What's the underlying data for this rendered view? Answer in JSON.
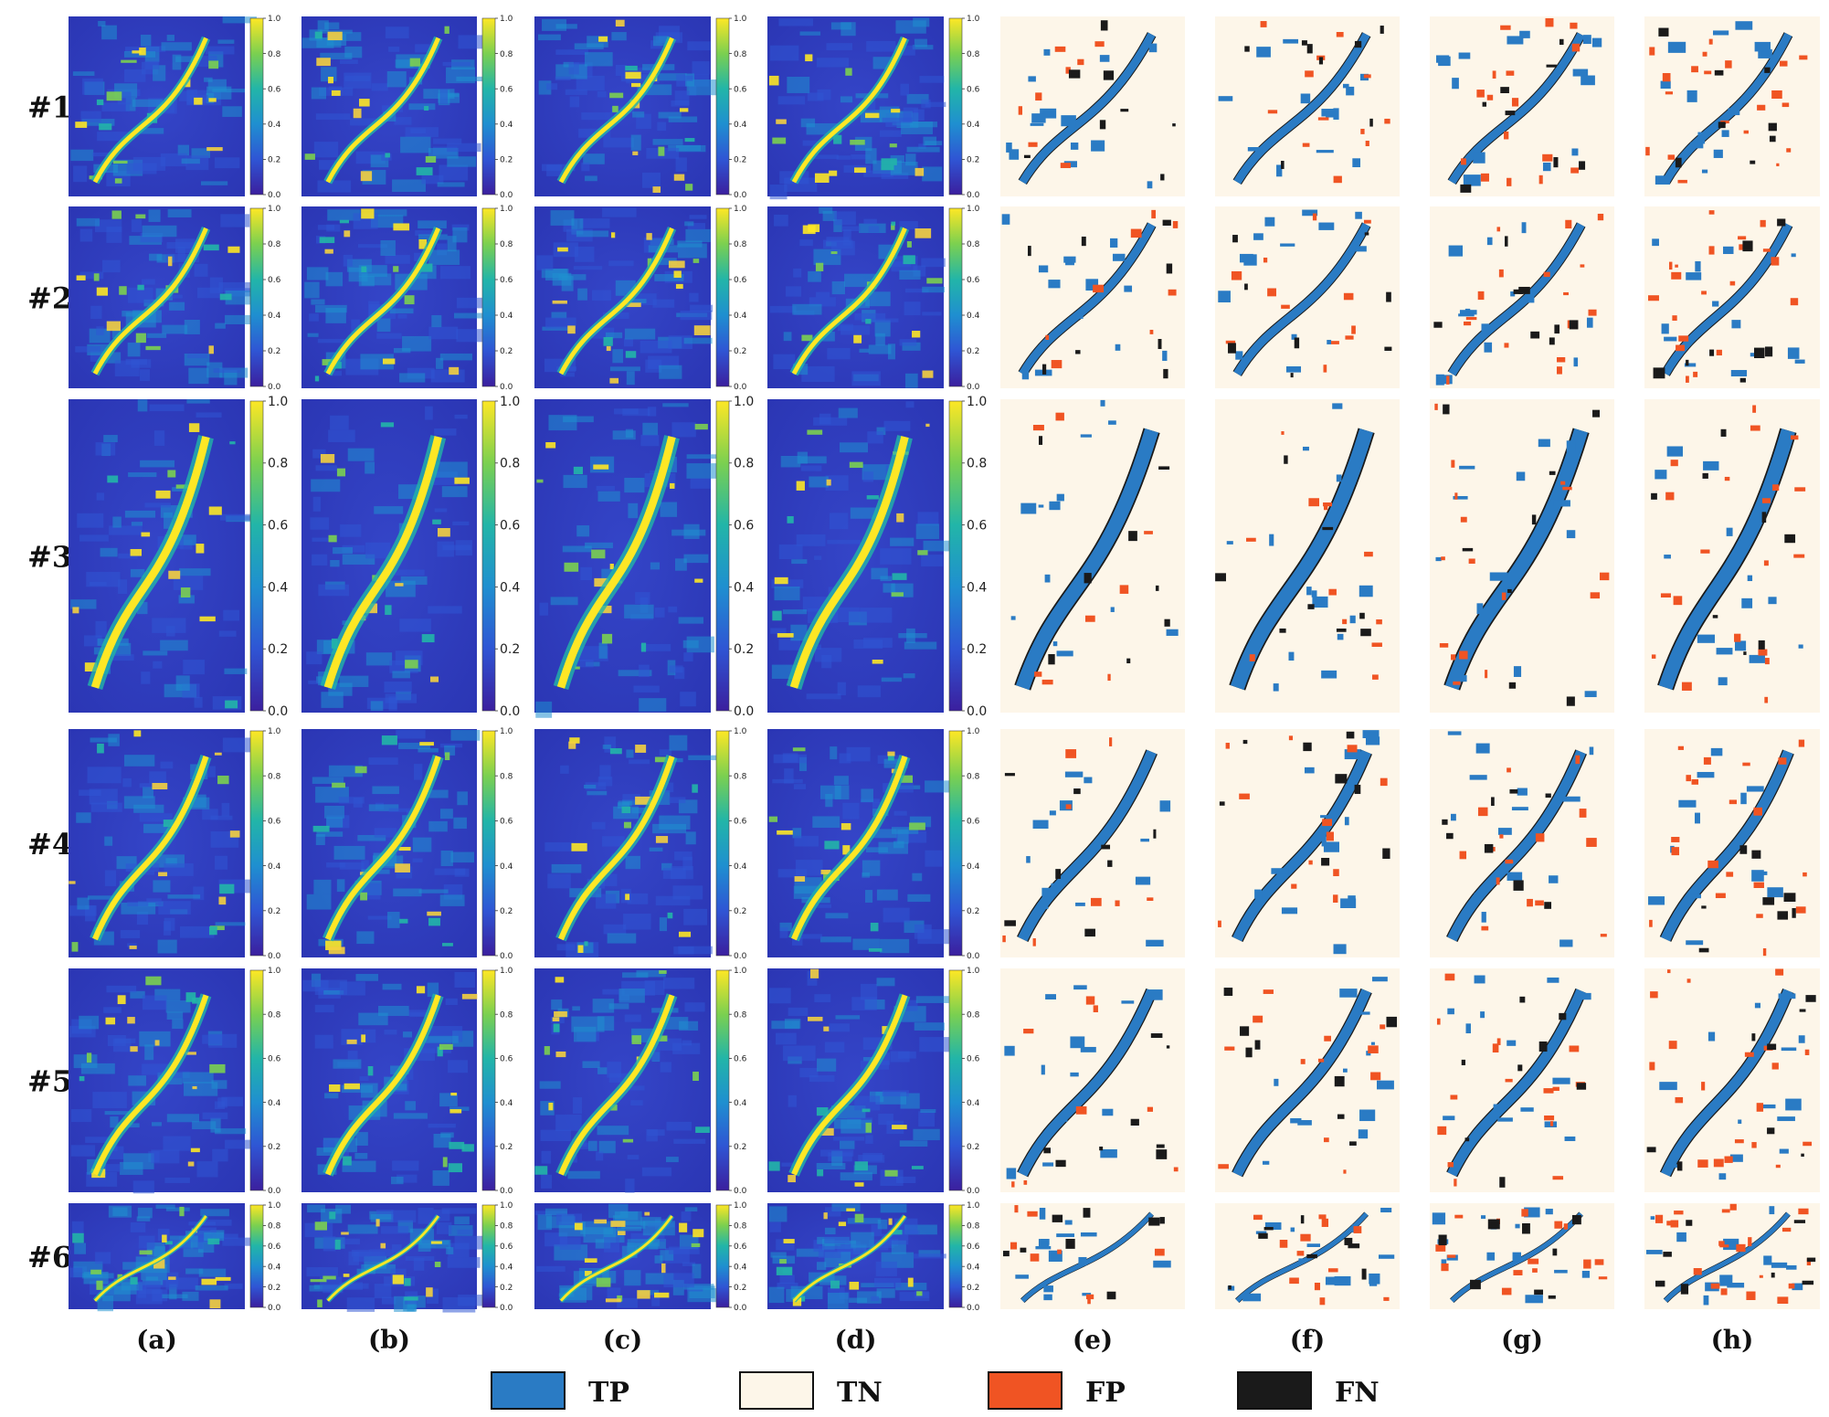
{
  "figure": {
    "row_labels": [
      "#1",
      "#2",
      "#3",
      "#4",
      "#5",
      "#6"
    ],
    "col_labels": [
      "(a)",
      "(b)",
      "(c)",
      "(d)",
      "(e)",
      "(f)",
      "(g)",
      "(h)"
    ],
    "colorbar_ticks": [
      "0.0",
      "0.2",
      "0.4",
      "0.6",
      "0.8",
      "1.0"
    ],
    "colormap": [
      "#3b1f9e",
      "#2f55d4",
      "#1f8fd0",
      "#22b5a8",
      "#7bd050",
      "#f4d03f",
      "#fde725"
    ],
    "legend": [
      {
        "label": "TP",
        "color": "#2a7bc4"
      },
      {
        "label": "TN",
        "color": "#fdf6e9"
      },
      {
        "label": "FP",
        "color": "#f05423"
      },
      {
        "label": "FN",
        "color": "#1a1a1a"
      }
    ]
  }
}
